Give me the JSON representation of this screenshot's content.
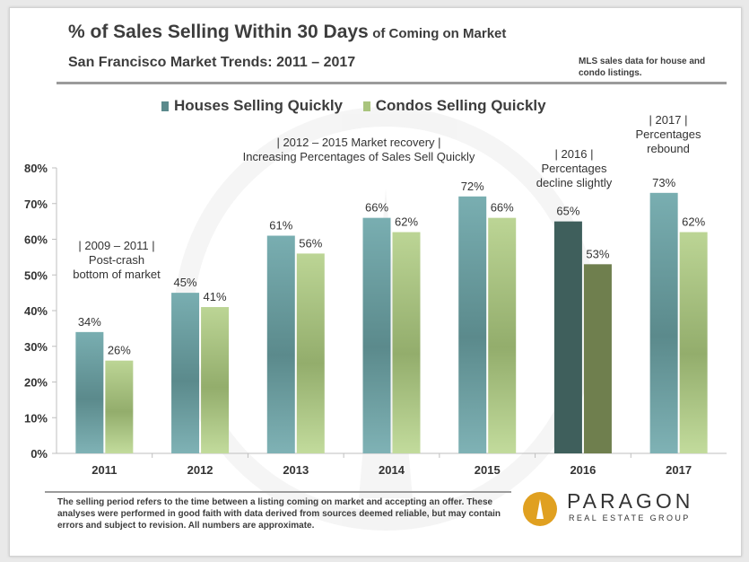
{
  "title": {
    "main": "% of Sales Selling Within 30 Days",
    "suffix": "of Coming on Market"
  },
  "subtitle": "San Francisco Market Trends: 2011 – 2017",
  "source_note": "MLS sales data for house and condo listings.",
  "legend": {
    "houses": "Houses Selling Quickly",
    "condos": "Condos Selling Quickly"
  },
  "annotations": {
    "a2009": [
      "| 2009 – 2011 |",
      "Post-crash",
      "bottom  of market"
    ],
    "a2012": [
      "|      2012 – 2015 Market recovery      |",
      "Increasing  Percentages  of Sales Sell Quickly"
    ],
    "a2016": [
      "|   2016   |",
      "Percentages",
      "decline slightly"
    ],
    "a2017": [
      "|   2017   |",
      "Percentages",
      "rebound"
    ]
  },
  "footer": "The selling period refers to the time between a listing coming on market and accepting an offer. These analyses were performed in good faith with data derived from sources deemed reliable, but may contain errors and subject to revision. All numbers are approximate.",
  "logo": {
    "name": "PARAGON",
    "tagline": "REAL ESTATE GROUP"
  },
  "colors": {
    "houses": "#6fa4a8",
    "condos": "#b5cf8a",
    "houses_2016": "#3f5f5c",
    "condos_2016": "#6f7f4e",
    "logo": "#e0a020"
  },
  "chart_data": {
    "type": "bar",
    "categories": [
      "2011",
      "2012",
      "2013",
      "2014",
      "2015",
      "2016",
      "2017"
    ],
    "series": [
      {
        "name": "Houses Selling Quickly",
        "values": [
          34,
          45,
          61,
          66,
          72,
          65,
          73
        ]
      },
      {
        "name": "Condos Selling Quickly",
        "values": [
          26,
          41,
          56,
          62,
          66,
          53,
          62
        ]
      }
    ],
    "data_labels": {
      "houses": [
        "34%",
        "45%",
        "61%",
        "66%",
        "72%",
        "65%",
        "73%"
      ],
      "condos": [
        "26%",
        "41%",
        "56%",
        "62%",
        "66%",
        "53%",
        "62%"
      ]
    },
    "yticks": [
      "0%",
      "10%",
      "20%",
      "30%",
      "40%",
      "50%",
      "60%",
      "70%",
      "80%"
    ],
    "ylim": [
      0,
      80
    ],
    "grid": false,
    "legend_position": "top"
  }
}
